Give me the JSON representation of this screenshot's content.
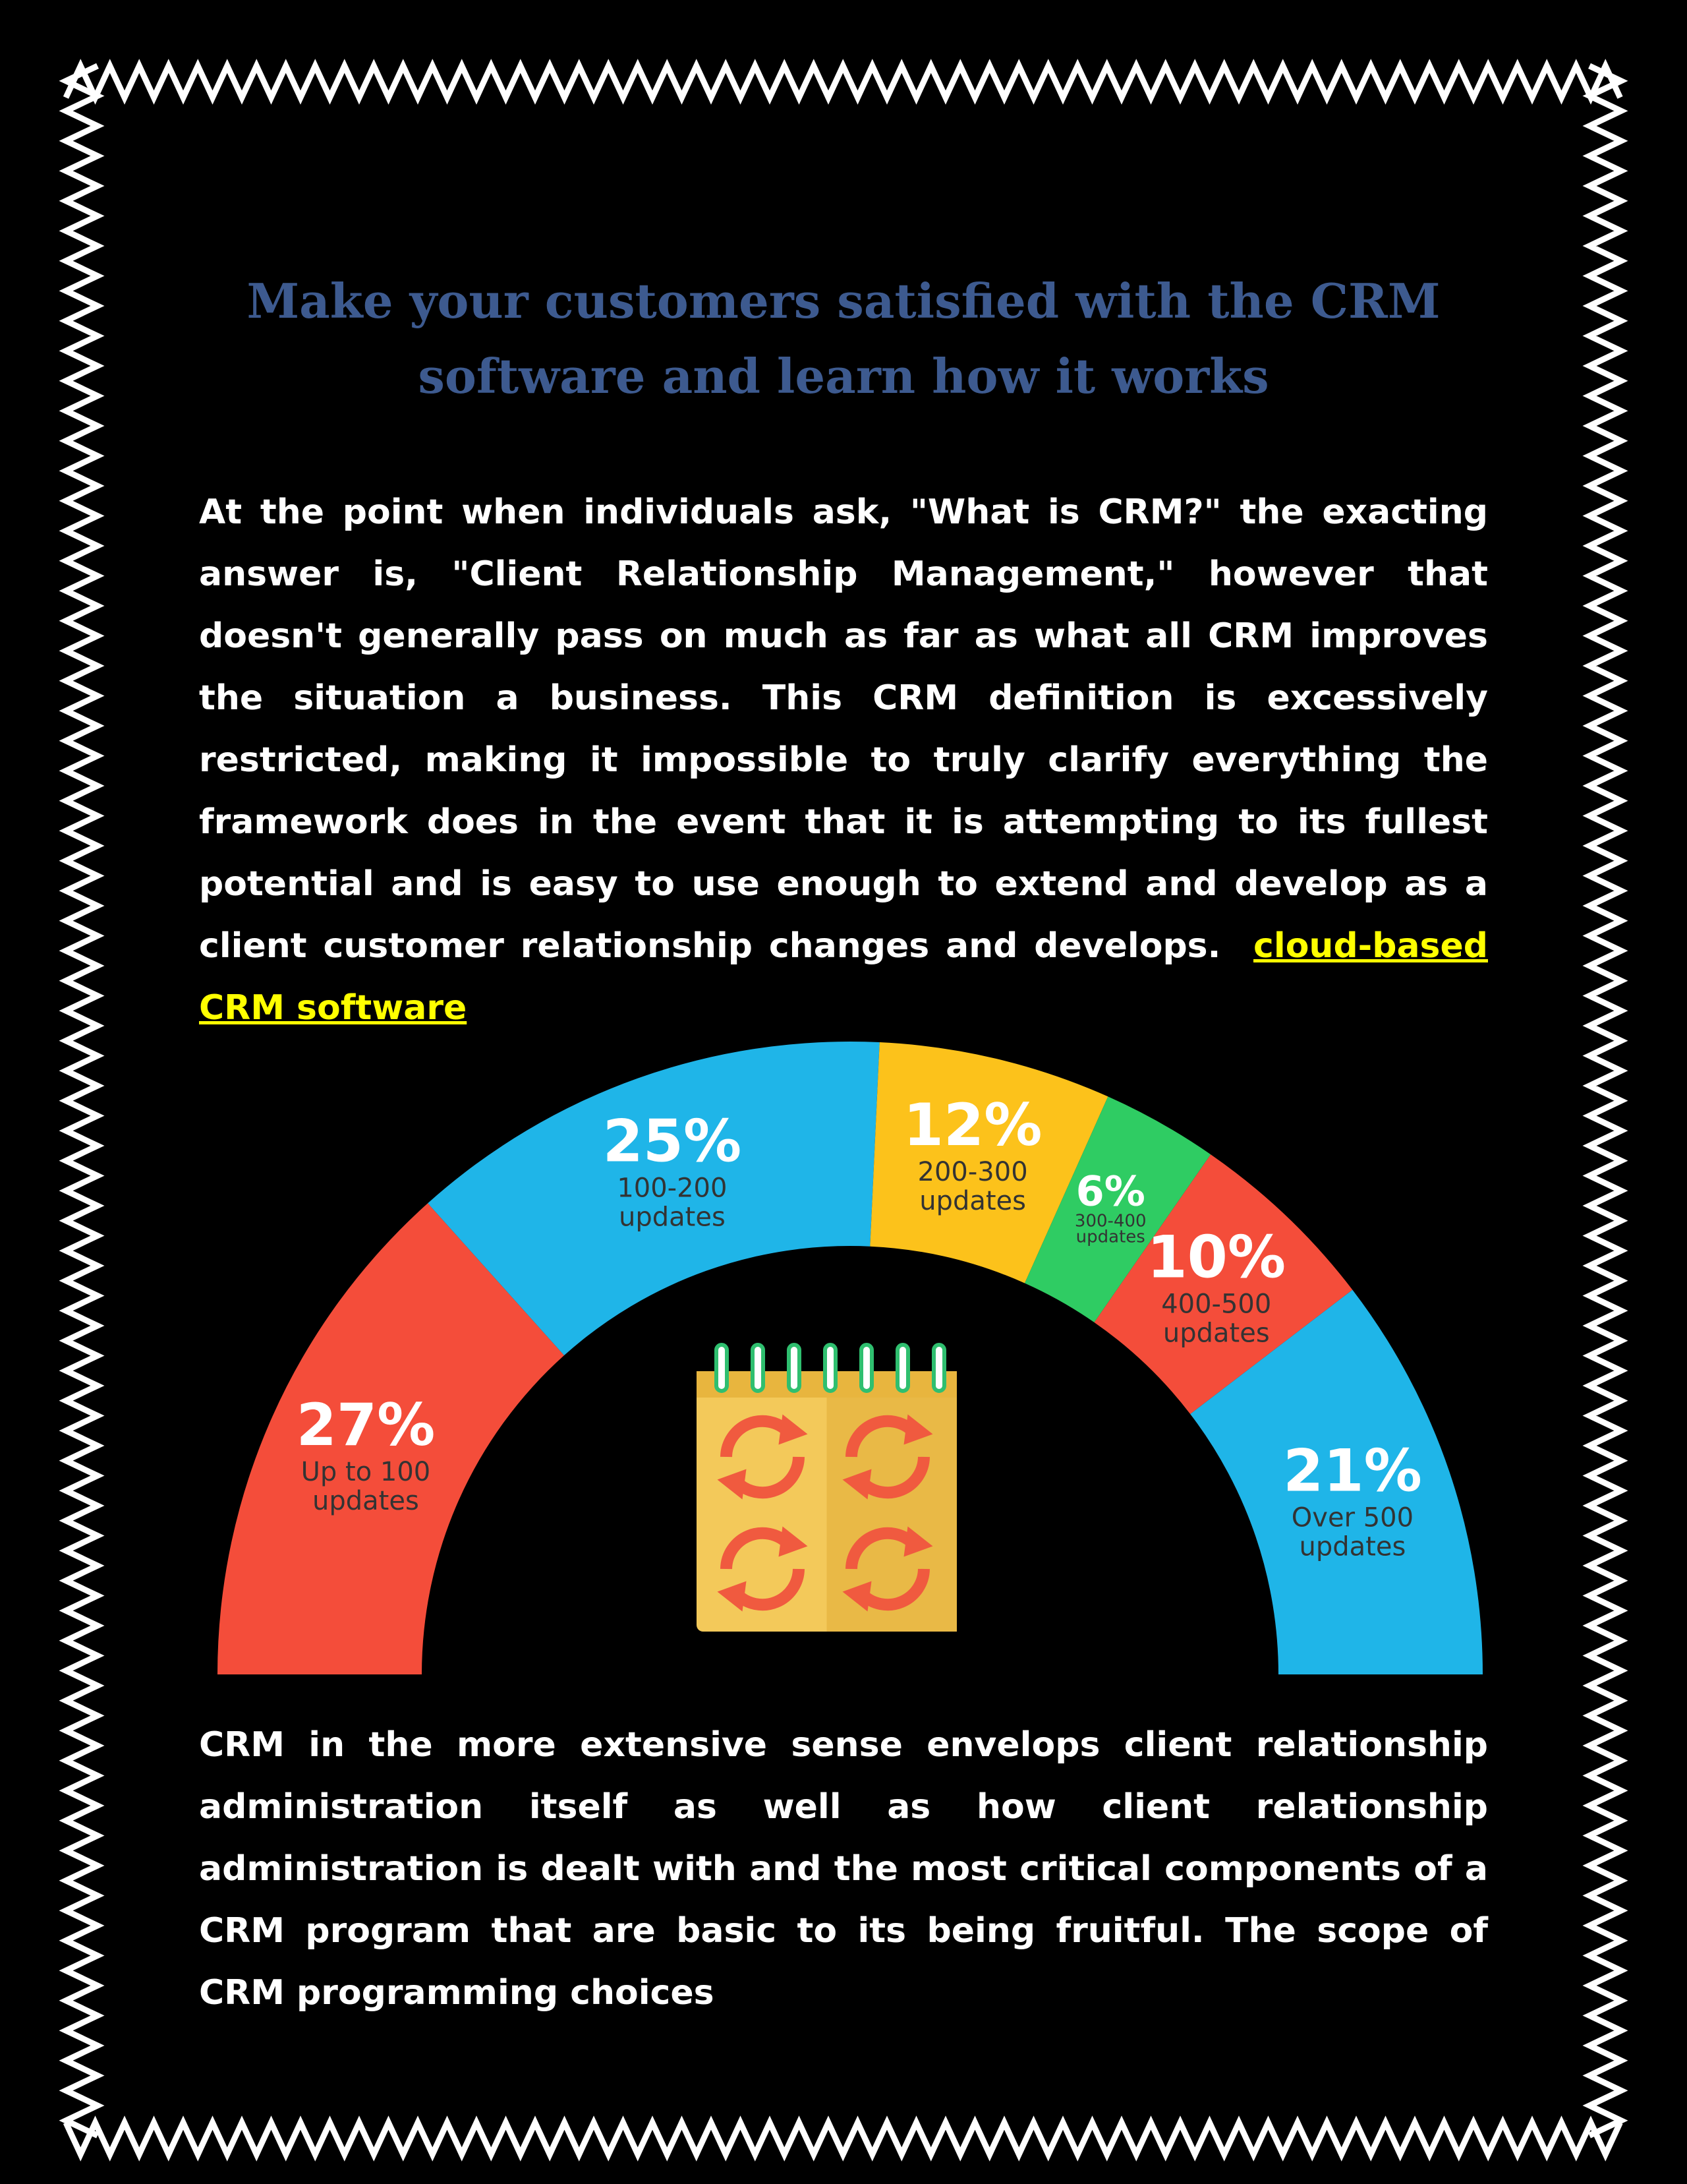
{
  "document": {
    "title_line1": "Make your customers satisfied with the CRM",
    "title_line2": "software and learn how it works",
    "paragraph1": "At the point when individuals ask, \"What is CRM?\" the exacting answer is, \"Client Relationship Management,\" however that doesn't generally pass on much as far as what all CRM improves the situation a business. This CRM definition is excessively restricted, making it impossible to truly clarify everything the framework does in the event that it is attempting to its fullest potential and is easy to use enough to extend and develop as a client customer relationship changes and develops.",
    "link_text": "cloud-based CRM software",
    "paragraph2": "CRM in the more extensive sense envelops client relationship administration itself as well as how client relationship administration is dealt with and the most critical components of a CRM program that are basic to its being fruitful. The scope of CRM programming choices"
  },
  "colors": {
    "background": "#000000",
    "title": "#3d5a8f",
    "body_text": "#ffffff",
    "link": "#ffff00",
    "red": "#f44d3a",
    "blue": "#1fb5e8",
    "yellow": "#fcc21b",
    "green": "#2fcc63"
  },
  "chart_data": {
    "type": "pie",
    "style": "half-donut",
    "icon": "calendar-sync-icon",
    "segments": [
      {
        "percent_label": "27%",
        "value": 27,
        "line1": "Up to 100",
        "line2": "updates",
        "color": "#f44d3a"
      },
      {
        "percent_label": "25%",
        "value": 25,
        "line1": "100-200",
        "line2": "updates",
        "color": "#1fb5e8"
      },
      {
        "percent_label": "12%",
        "value": 12,
        "line1": "200-300",
        "line2": "updates",
        "color": "#fcc21b"
      },
      {
        "percent_label": "6%",
        "value": 6,
        "line1": "300-400",
        "line2": "updates",
        "color": "#2fcc63"
      },
      {
        "percent_label": "10%",
        "value": 10,
        "line1": "400-500",
        "line2": "updates",
        "color": "#f44d3a"
      },
      {
        "percent_label": "21%",
        "value": 21,
        "line1": "Over 500",
        "line2": "updates",
        "color": "#1fb5e8"
      }
    ]
  }
}
